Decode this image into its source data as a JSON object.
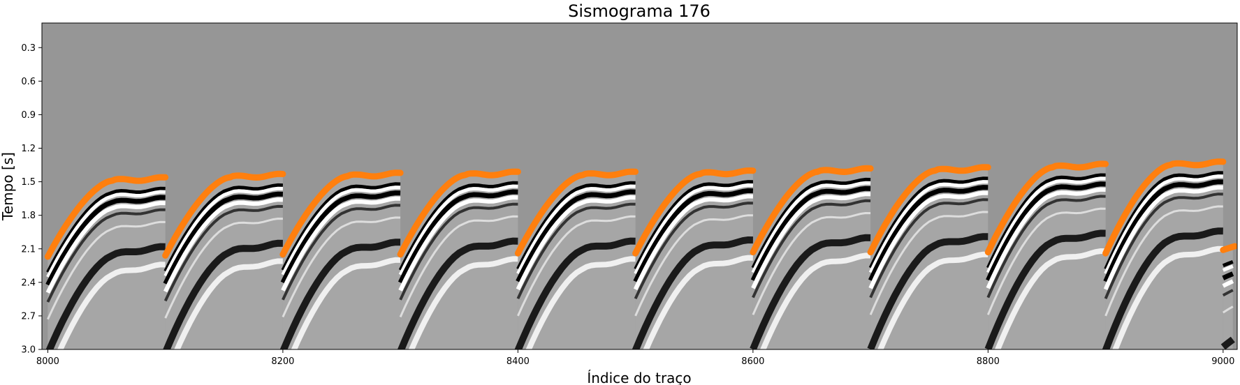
{
  "chart_data": {
    "type": "heatmap",
    "title": "Sismograma 176",
    "xlabel": "Índice do traço",
    "ylabel": "Tempo [s]",
    "xlim": [
      7995,
      9012
    ],
    "ylim": [
      3.0,
      0.08
    ],
    "xticks": [
      "8000",
      "8200",
      "8400",
      "8600",
      "8800",
      "9000"
    ],
    "yticks": [
      "0.3",
      "0.6",
      "0.9",
      "1.2",
      "1.5",
      "1.8",
      "2.1",
      "2.4",
      "2.7",
      "3.0"
    ],
    "grid": false,
    "colormap": "gray",
    "background_color": "#969696",
    "pick_color": "#ff7f0e",
    "gathers": [
      {
        "x_start": 8000,
        "x_end": 8100,
        "pick_start_t": 2.17,
        "pick_end_t": 1.47
      },
      {
        "x_start": 8100,
        "x_end": 8200,
        "pick_start_t": 2.16,
        "pick_end_t": 1.44
      },
      {
        "x_start": 8200,
        "x_end": 8300,
        "pick_start_t": 2.15,
        "pick_end_t": 1.43
      },
      {
        "x_start": 8300,
        "x_end": 8400,
        "pick_start_t": 2.15,
        "pick_end_t": 1.42
      },
      {
        "x_start": 8400,
        "x_end": 8500,
        "pick_start_t": 2.14,
        "pick_end_t": 1.42
      },
      {
        "x_start": 8500,
        "x_end": 8600,
        "pick_start_t": 2.14,
        "pick_end_t": 1.41
      },
      {
        "x_start": 8600,
        "x_end": 8700,
        "pick_start_t": 2.13,
        "pick_end_t": 1.39
      },
      {
        "x_start": 8700,
        "x_end": 8800,
        "pick_start_t": 2.13,
        "pick_end_t": 1.38
      },
      {
        "x_start": 8800,
        "x_end": 8900,
        "pick_start_t": 2.13,
        "pick_end_t": 1.35
      },
      {
        "x_start": 8900,
        "x_end": 9000,
        "pick_start_t": 2.14,
        "pick_end_t": 1.33
      },
      {
        "x_start": 9000,
        "x_end": 9012,
        "pick_start_t": 2.11,
        "pick_end_t": 1.97
      }
    ]
  }
}
